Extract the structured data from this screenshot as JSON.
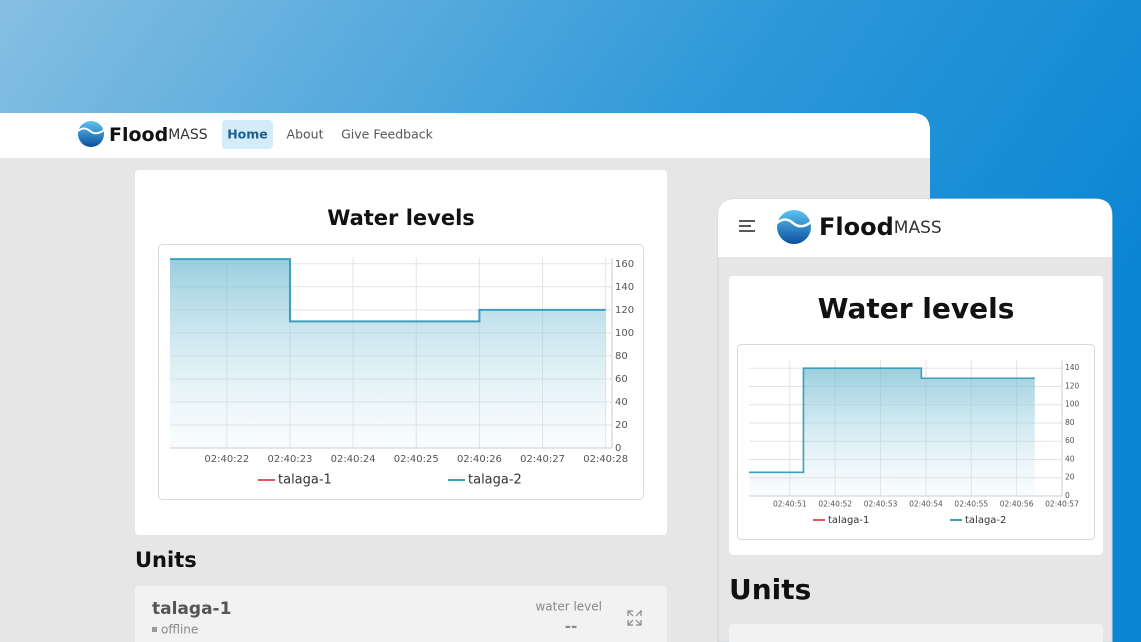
{
  "desktop": {
    "brand": {
      "main": "Flood",
      "sub": "MASS"
    },
    "nav": [
      "Home",
      "About",
      "Give Feedback"
    ],
    "chart": {
      "type": "line",
      "step": "after",
      "area": true,
      "title": "Water levels",
      "x": [
        9621.1,
        9623,
        9626,
        9628
      ],
      "series": [
        {
          "name": "talaga-1",
          "color": "#e05a5a",
          "values": []
        },
        {
          "name": "talaga-2",
          "color": "#3d9fbd",
          "values": [
            164,
            110,
            120,
            120
          ]
        }
      ],
      "xlim": [
        9621.1,
        9628.1
      ],
      "xticks": [
        {
          "value": 9622,
          "label": "02:40:22"
        },
        {
          "value": 9623,
          "label": "02:40:23"
        },
        {
          "value": 9624,
          "label": "02:40:24"
        },
        {
          "value": 9625,
          "label": "02:40:25"
        },
        {
          "value": 9626,
          "label": "02:40:26"
        },
        {
          "value": 9627,
          "label": "02:40:27"
        },
        {
          "value": 9628,
          "label": "02:40:28"
        }
      ],
      "ylim": [
        0,
        165
      ],
      "yticks": [
        0,
        20,
        40,
        60,
        80,
        100,
        120,
        140,
        160
      ],
      "grid": true,
      "legend": "bottom"
    },
    "units_heading": "Units",
    "units": [
      {
        "name": "talaga-1",
        "status": "offline",
        "metric_label": "water level",
        "metric_value": "--"
      }
    ]
  },
  "mobile": {
    "brand": {
      "main": "Flood",
      "sub": "MASS"
    },
    "chart": {
      "type": "line",
      "step": "after",
      "area": true,
      "title": "Water levels",
      "x": [
        9650.1,
        9651.3,
        9653.9,
        9656.4
      ],
      "series": [
        {
          "name": "talaga-1",
          "color": "#e05a5a",
          "values": []
        },
        {
          "name": "talaga-2",
          "color": "#3d9fbd",
          "values": [
            26,
            140,
            129,
            129
          ]
        }
      ],
      "xlim": [
        9650.1,
        9657
      ],
      "xticks": [
        {
          "value": 9651,
          "label": "02:40:51"
        },
        {
          "value": 9652,
          "label": "02:40:52"
        },
        {
          "value": 9653,
          "label": "02:40:53"
        },
        {
          "value": 9654,
          "label": "02:40:54"
        },
        {
          "value": 9655,
          "label": "02:40:55"
        },
        {
          "value": 9656,
          "label": "02:40:56"
        },
        {
          "value": 9657,
          "label": "02:40:57"
        }
      ],
      "ylim": [
        0,
        149
      ],
      "yticks": [
        0,
        20,
        40,
        60,
        80,
        100,
        120,
        140
      ],
      "grid": true,
      "legend": "bottom"
    },
    "units_heading": "Units"
  }
}
